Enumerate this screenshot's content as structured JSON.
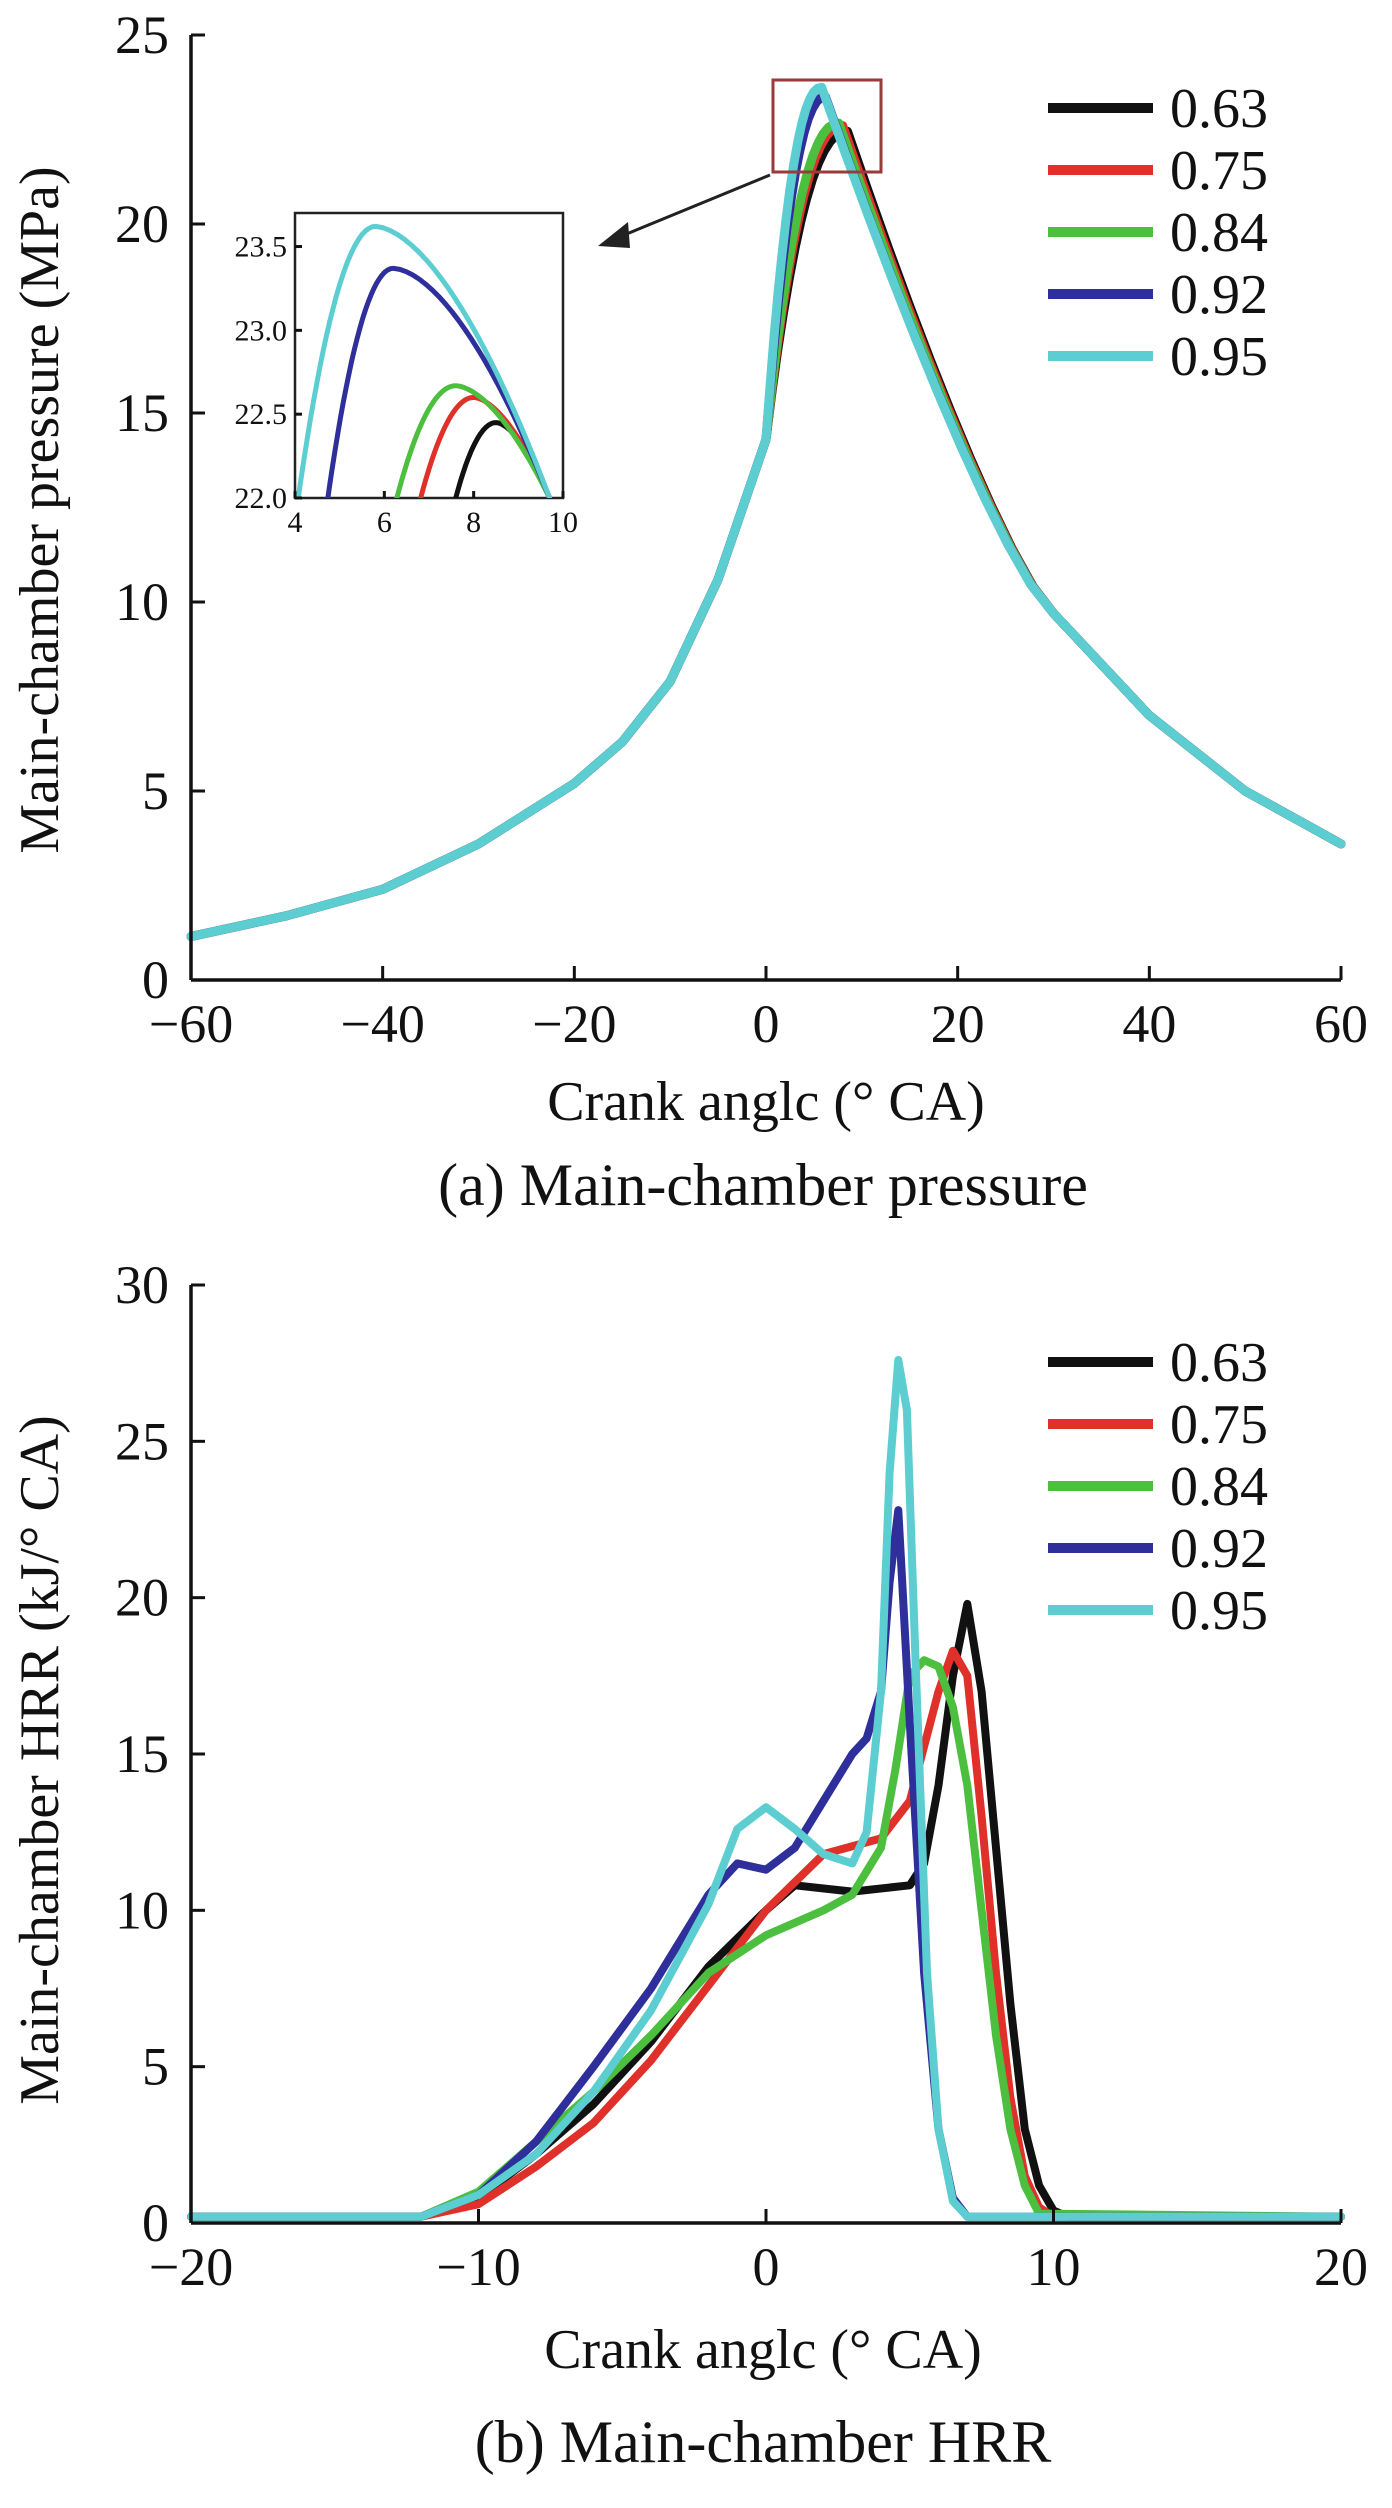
{
  "figure": {
    "caption_a": "(a) Main-chamber pressure",
    "caption_b": "(b) Main-chamber HRR"
  },
  "legend": [
    {
      "label": "0.63",
      "color": "#111111"
    },
    {
      "label": "0.75",
      "color": "#e0302a"
    },
    {
      "label": "0.84",
      "color": "#4cbf3f"
    },
    {
      "label": "0.92",
      "color": "#2e2f9a"
    },
    {
      "label": "0.95",
      "color": "#5ccdd0"
    }
  ],
  "chart_data": [
    {
      "type": "line",
      "title": "(a) Main-chamber pressure",
      "xlabel": "Crank anglc (° CA)",
      "ylabel": "Main-chamber pressure (MPa)",
      "xlim": [
        -60,
        60
      ],
      "ylim": [
        0,
        25
      ],
      "xticks": [
        -60,
        -40,
        -20,
        0,
        20,
        40,
        60
      ],
      "yticks": [
        0,
        5,
        10,
        15,
        20,
        25
      ],
      "xtick_labels": [
        "−60",
        "−40",
        "−20",
        "0",
        "20",
        "40",
        "60"
      ],
      "ytick_labels": [
        "0",
        "5",
        "10",
        "15",
        "20",
        "25"
      ],
      "series": [
        {
          "name": "0.63",
          "peak_x": 8.5,
          "peak_y": 22.45
        },
        {
          "name": "0.75",
          "peak_x": 8.0,
          "peak_y": 22.6
        },
        {
          "name": "0.84",
          "peak_x": 7.6,
          "peak_y": 22.67
        },
        {
          "name": "0.92",
          "peak_x": 6.2,
          "peak_y": 23.37
        },
        {
          "name": "0.95",
          "peak_x": 5.8,
          "peak_y": 23.62
        }
      ],
      "common_curve": [
        [
          -60,
          1.15
        ],
        [
          -50,
          1.7
        ],
        [
          -40,
          2.4
        ],
        [
          -30,
          3.6
        ],
        [
          -20,
          5.2
        ],
        [
          -15,
          6.3
        ],
        [
          -10,
          7.9
        ],
        [
          -5,
          10.6
        ],
        [
          0,
          14.3
        ],
        [
          30,
          9.7
        ],
        [
          40,
          7.0
        ],
        [
          50,
          5.0
        ],
        [
          60,
          3.6
        ]
      ],
      "inset": {
        "xlim": [
          4,
          10
        ],
        "ylim": [
          22.0,
          23.7
        ],
        "xticks": [
          4,
          6,
          8,
          10
        ],
        "yticks": [
          22.0,
          22.5,
          23.0,
          23.5
        ],
        "xtick_labels": [
          "4",
          "6",
          "8",
          "10"
        ],
        "ytick_labels": [
          "22.0",
          "22.5",
          "23.0",
          "23.5"
        ]
      }
    },
    {
      "type": "line",
      "title": "(b) Main-chamber HRR",
      "xlabel": "Crank anglc (° CA)",
      "ylabel": "Main-chamber HRR (kJ/° CA)",
      "xlim": [
        -20,
        20
      ],
      "ylim": [
        0,
        30
      ],
      "xticks": [
        -20,
        -10,
        0,
        10,
        20
      ],
      "yticks": [
        0,
        5,
        10,
        15,
        20,
        25,
        30
      ],
      "xtick_labels": [
        "−20",
        "−10",
        "0",
        "10",
        "20"
      ],
      "ytick_labels": [
        "0",
        "5",
        "10",
        "15",
        "20",
        "25",
        "30"
      ],
      "series": [
        {
          "name": "0.63",
          "x": [
            -20,
            -12,
            -10,
            -8,
            -6,
            -4,
            -2,
            0,
            1,
            3,
            5,
            5.5,
            6,
            6.5,
            7,
            7.5,
            8,
            8.5,
            9,
            9.5,
            10,
            10.5,
            20
          ],
          "y": [
            0.2,
            0.2,
            0.8,
            2.2,
            3.8,
            5.8,
            8.2,
            10.0,
            10.8,
            10.6,
            10.8,
            11.5,
            14.0,
            17.5,
            19.8,
            17.0,
            12.0,
            7.0,
            3.0,
            1.2,
            0.4,
            0.2,
            0.2
          ]
        },
        {
          "name": "0.75",
          "x": [
            -20,
            -12,
            -10,
            -8,
            -6,
            -4,
            -2,
            0,
            2,
            4,
            5,
            6,
            6.5,
            7,
            7.5,
            8,
            8.5,
            9,
            9.5,
            10,
            20
          ],
          "y": [
            0.2,
            0.2,
            0.6,
            1.8,
            3.2,
            5.2,
            7.6,
            10.0,
            11.8,
            12.3,
            13.5,
            17.0,
            18.3,
            17.5,
            13.0,
            8.0,
            4.0,
            1.5,
            0.5,
            0.2,
            0.2
          ]
        },
        {
          "name": "0.84",
          "x": [
            -20,
            -12,
            -10,
            -8,
            -6,
            -4,
            -2,
            0,
            2,
            3,
            4,
            4.5,
            5,
            5.5,
            6,
            6.5,
            7,
            7.5,
            8,
            8.5,
            9,
            9.5,
            20
          ],
          "y": [
            0.2,
            0.2,
            1.0,
            2.6,
            4.2,
            6.0,
            8.0,
            9.2,
            10.0,
            10.5,
            12.0,
            14.5,
            17.5,
            18.0,
            17.8,
            16.5,
            14.0,
            10.0,
            6.0,
            3.0,
            1.2,
            0.3,
            0.2
          ]
        },
        {
          "name": "0.92",
          "x": [
            -20,
            -12,
            -10,
            -8,
            -7,
            -6,
            -4,
            -2,
            -1,
            0,
            1,
            2,
            3,
            3.5,
            4,
            4.3,
            4.6,
            5,
            5.5,
            6,
            6.5,
            7,
            20
          ],
          "y": [
            0.2,
            0.2,
            0.9,
            2.6,
            3.8,
            5.0,
            7.5,
            10.5,
            11.5,
            11.3,
            12.0,
            13.5,
            15.0,
            15.5,
            17.0,
            20.5,
            22.8,
            16.0,
            8.0,
            3.0,
            0.8,
            0.2,
            0.2
          ]
        },
        {
          "name": "0.95",
          "x": [
            -20,
            -12,
            -10,
            -8,
            -6,
            -4,
            -2,
            -1,
            0,
            1,
            2,
            3,
            3.5,
            4,
            4.3,
            4.6,
            4.9,
            5.2,
            5.6,
            6,
            6.5,
            7,
            20
          ],
          "y": [
            0.2,
            0.2,
            0.9,
            2.2,
            4.2,
            6.8,
            10.2,
            12.6,
            13.3,
            12.6,
            11.8,
            11.5,
            12.5,
            17.0,
            24.0,
            27.6,
            26.0,
            18.0,
            8.0,
            3.0,
            0.7,
            0.2,
            0.2
          ]
        }
      ]
    }
  ]
}
